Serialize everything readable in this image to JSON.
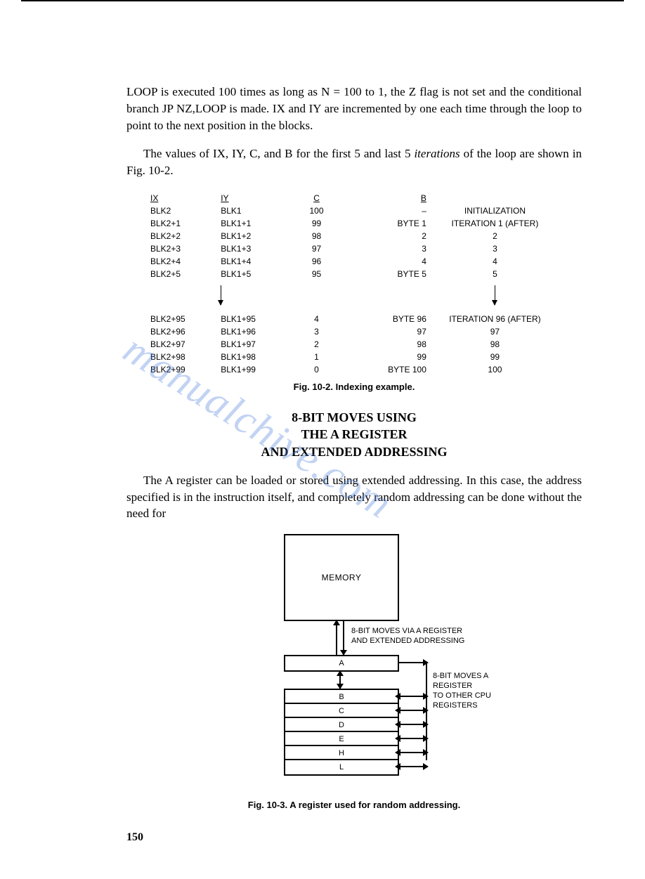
{
  "paragraphs": {
    "p1": "LOOP is executed 100 times as long as N = 100 to 1, the Z flag is not set and the conditional branch JP NZ,LOOP is made. IX and IY are incremented by one each time through the loop to point to the next position in the blocks.",
    "p2_prefix": "The values of IX, IY, C, and B for the first 5 and last 5 ",
    "p2_italic": "iterations",
    "p2_suffix": " of the loop are shown in Fig. 10-2.",
    "p3": "The A register can be loaded or stored using extended addressing. In this case, the address specified is in the instruction itself, and completely random addressing can be done without the need for"
  },
  "table102": {
    "headers": {
      "ix": "IX",
      "iy": "IY",
      "c": "C",
      "b": "B"
    },
    "rows_top": [
      {
        "ix": "BLK2",
        "iy": "BLK1",
        "c": "100",
        "b": "–",
        "note": "INITIALIZATION"
      },
      {
        "ix": "BLK2+1",
        "iy": "BLK1+1",
        "c": "99",
        "b": "BYTE 1",
        "note": "ITERATION 1 (AFTER)"
      },
      {
        "ix": "BLK2+2",
        "iy": "BLK1+2",
        "c": "98",
        "b": "2",
        "note": "2"
      },
      {
        "ix": "BLK2+3",
        "iy": "BLK1+3",
        "c": "97",
        "b": "3",
        "note": "3"
      },
      {
        "ix": "BLK2+4",
        "iy": "BLK1+4",
        "c": "96",
        "b": "4",
        "note": "4"
      },
      {
        "ix": "BLK2+5",
        "iy": "BLK1+5",
        "c": "95",
        "b": "BYTE 5",
        "note": "5"
      }
    ],
    "rows_bot": [
      {
        "ix": "BLK2+95",
        "iy": "BLK1+95",
        "c": "4",
        "b": "BYTE 96",
        "note": "ITERATION 96 (AFTER)"
      },
      {
        "ix": "BLK2+96",
        "iy": "BLK1+96",
        "c": "3",
        "b": "97",
        "note": "97"
      },
      {
        "ix": "BLK2+97",
        "iy": "BLK1+97",
        "c": "2",
        "b": "98",
        "note": "98"
      },
      {
        "ix": "BLK2+98",
        "iy": "BLK1+98",
        "c": "1",
        "b": "99",
        "note": "99"
      },
      {
        "ix": "BLK2+99",
        "iy": "BLK1+99",
        "c": "0",
        "b": "BYTE 100",
        "note": "100"
      }
    ],
    "caption": "Fig. 10-2. Indexing example."
  },
  "heading": {
    "l1": "8-BIT MOVES USING",
    "l2": "THE A REGISTER",
    "l3": "AND EXTENDED ADDRESSING"
  },
  "fig103": {
    "memory_label": "MEMORY",
    "side1_l1": "8-BIT MOVES VIA A REGISTER",
    "side1_l2": "AND EXTENDED ADDRESSING",
    "side2_l1": "8-BIT MOVES A REGISTER",
    "side2_l2": "TO OTHER CPU REGISTERS",
    "regs": {
      "a": "A",
      "b": "B",
      "c": "C",
      "d": "D",
      "e": "E",
      "h": "H",
      "l": "L"
    },
    "caption": "Fig. 10-3. A register used for random addressing."
  },
  "page_number": "150",
  "watermark": "manualchive.com",
  "colors": {
    "text": "#000000",
    "background": "#ffffff",
    "watermark": "rgba(80,130,220,0.35)"
  }
}
